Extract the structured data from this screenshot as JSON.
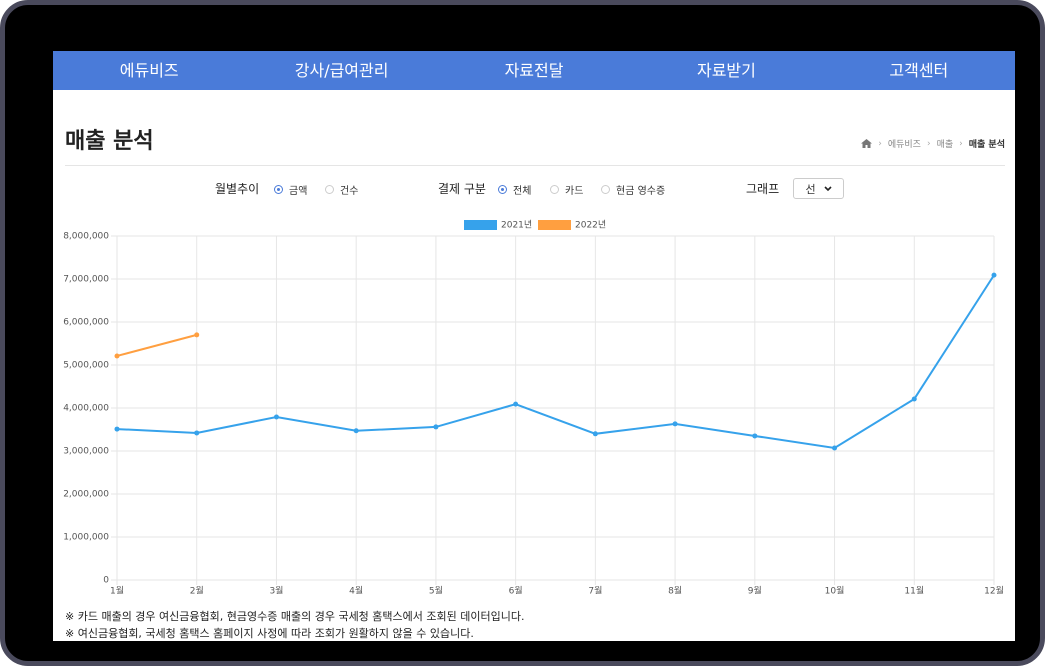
{
  "nav": [
    "에듀비즈",
    "강사/급여관리",
    "자료전달",
    "자료받기",
    "고객센터"
  ],
  "page_title": "매출 분석",
  "breadcrumb": [
    "에듀비즈",
    "매출",
    "매출 분석"
  ],
  "filters": {
    "monthly": {
      "label": "월별추이",
      "options": [
        "금액",
        "건수"
      ]
    },
    "payment": {
      "label": "결제 구분",
      "options": [
        "전체",
        "카드",
        "현금 영수증"
      ]
    },
    "graph": {
      "label": "그래프",
      "selected": "선"
    }
  },
  "chart_data": {
    "type": "line",
    "categories": [
      "1월",
      "2월",
      "3월",
      "4월",
      "5월",
      "6월",
      "7월",
      "8월",
      "9월",
      "10월",
      "11월",
      "12월"
    ],
    "series": [
      {
        "name": "2021년",
        "color": "#36a2eb",
        "values": [
          3510000,
          3420000,
          3790000,
          3470000,
          3560000,
          4090000,
          3400000,
          3630000,
          3350000,
          3070000,
          4210000,
          7090000
        ]
      },
      {
        "name": "2022년",
        "color": "#ff9f40",
        "values": [
          5210000,
          5700000,
          null,
          null,
          null,
          null,
          null,
          null,
          null,
          null,
          null,
          null
        ]
      }
    ],
    "ylim": [
      0,
      8000000
    ],
    "yticks": [
      0,
      {
        "value": 1000000,
        "label": "1,000,000"
      },
      {
        "value": 2000000,
        "label": "2,000,000"
      },
      {
        "value": 3000000,
        "label": "3,000,000"
      },
      {
        "value": 4000000,
        "label": "4,000,000"
      },
      {
        "value": 5000000,
        "label": "5,000,000"
      },
      {
        "value": 6000000,
        "label": "6,000,000"
      },
      {
        "value": 7000000,
        "label": "7,000,000"
      },
      {
        "value": 8000000,
        "label": "8,000,000"
      }
    ],
    "grid": true,
    "legend": "top"
  },
  "notes": [
    "※ 카드 매출의 경우 여신금융협회, 현금영수증 매출의 경우 국세청 홈택스에서 조회된 데이터입니다.",
    "※ 여신금융협회, 국세청 홈택스 홈페이지 사정에 따라 조회가 원활하지 않을 수 있습니다."
  ]
}
